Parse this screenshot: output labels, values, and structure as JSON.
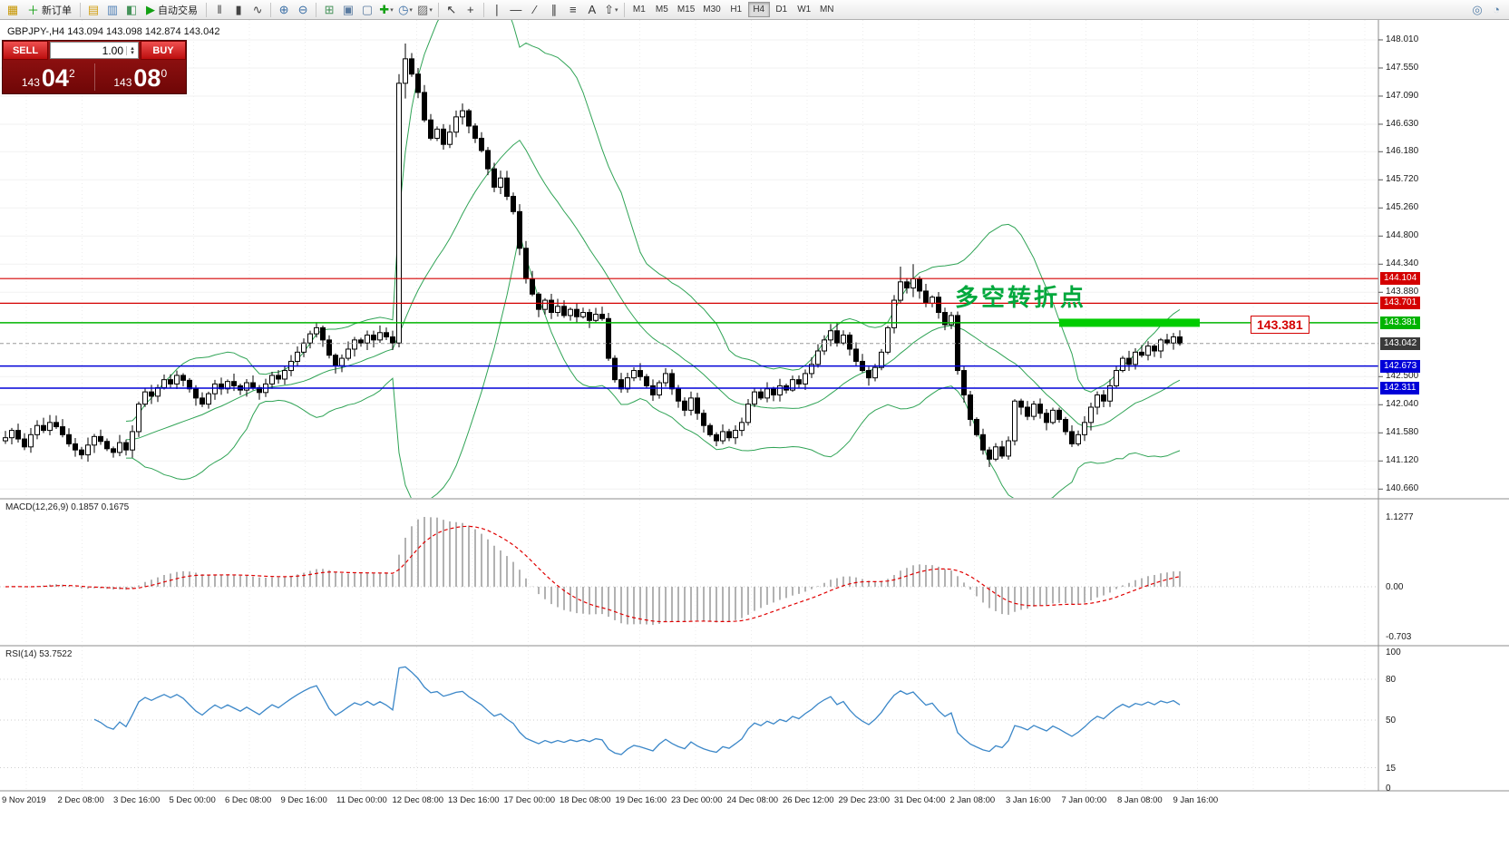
{
  "toolbar": {
    "timeframes": [
      "M1",
      "M5",
      "M15",
      "M30",
      "H1",
      "H4",
      "D1",
      "W1",
      "MN"
    ],
    "active_timeframe": "H4",
    "items": [
      {
        "t": "icon",
        "name": "mt-logo-icon",
        "g": "▦",
        "c": "#c79600"
      },
      {
        "t": "icon",
        "name": "new-order-button",
        "g": "＋",
        "c": "#12a012",
        "label": "新订单"
      },
      {
        "t": "sep"
      },
      {
        "t": "icon",
        "name": "profiles-icon",
        "g": "▤",
        "c": "#d2a017"
      },
      {
        "t": "icon",
        "name": "market-watch-icon",
        "g": "▥",
        "c": "#4f7fb5"
      },
      {
        "t": "icon",
        "name": "navigator-icon",
        "g": "◧",
        "c": "#46935a"
      },
      {
        "t": "icon",
        "name": "auto-trading-button",
        "g": "▶",
        "c": "#12a012",
        "label": "自动交易"
      },
      {
        "t": "sep"
      },
      {
        "t": "icon",
        "name": "bar-chart-icon",
        "g": "‖",
        "c": "#444444"
      },
      {
        "t": "icon",
        "name": "candlestick-chart-icon",
        "g": "▮",
        "c": "#444444"
      },
      {
        "t": "icon",
        "name": "line-chart-icon",
        "g": "∿",
        "c": "#444444"
      },
      {
        "t": "sep"
      },
      {
        "t": "icon",
        "name": "zoom-in-icon",
        "g": "⊕",
        "c": "#3a6ea5"
      },
      {
        "t": "icon",
        "name": "zoom-out-icon",
        "g": "⊖",
        "c": "#3a6ea5"
      },
      {
        "t": "sep"
      },
      {
        "t": "icon",
        "name": "tile-windows-icon",
        "g": "⊞",
        "c": "#46935a"
      },
      {
        "t": "icon",
        "name": "cascade-windows-icon",
        "g": "▣",
        "c": "#5a7ba0"
      },
      {
        "t": "icon",
        "name": "arrange-windows-icon",
        "g": "▢",
        "c": "#5a7ba0"
      },
      {
        "t": "icon",
        "name": "new-chart-icon",
        "g": "✚",
        "c": "#12a012",
        "caret": true
      },
      {
        "t": "icon",
        "name": "period-icon",
        "g": "◷",
        "c": "#3a6ea5",
        "caret": true
      },
      {
        "t": "icon",
        "name": "template-icon",
        "g": "▨",
        "c": "#6b6b6b",
        "caret": true
      },
      {
        "t": "sep"
      },
      {
        "t": "icon",
        "name": "cursor-icon",
        "g": "↖",
        "c": "#333333"
      },
      {
        "t": "icon",
        "name": "crosshair-icon",
        "g": "+",
        "c": "#333333"
      },
      {
        "t": "sep"
      },
      {
        "t": "icon",
        "name": "vertical-line-icon",
        "g": "∣",
        "c": "#333333"
      },
      {
        "t": "icon",
        "name": "horizontal-line-icon",
        "g": "—",
        "c": "#333333"
      },
      {
        "t": "icon",
        "name": "trendline-icon",
        "g": "∕",
        "c": "#333333"
      },
      {
        "t": "icon",
        "name": "channel-icon",
        "g": "∥",
        "c": "#333333"
      },
      {
        "t": "icon",
        "name": "fibonacci-icon",
        "g": "≡",
        "c": "#333333"
      },
      {
        "t": "icon",
        "name": "text-icon",
        "g": "A",
        "c": "#333333"
      },
      {
        "t": "icon",
        "name": "arrows-icon",
        "g": "⇧",
        "c": "#333333",
        "caret": true
      },
      {
        "t": "sep"
      },
      {
        "t": "tfs"
      },
      {
        "t": "spacer"
      },
      {
        "t": "icon",
        "name": "search-icon",
        "g": "◎",
        "c": "#5a82aa"
      },
      {
        "t": "icon",
        "name": "help-icon",
        "g": "◔",
        "c": "#5a82aa"
      }
    ]
  },
  "chart": {
    "symbol_line": "GBPJPY-,H4  143.094 143.098 142.874 143.042",
    "annotation": "多空转折点",
    "callout_label": "143.381"
  },
  "trade_panel": {
    "sell_label": "SELL",
    "buy_label": "BUY",
    "volume": "1.00",
    "sell_price_prefix": "143",
    "sell_price_big": "04",
    "sell_price_sup": "2",
    "buy_price_prefix": "143",
    "buy_price_big": "08",
    "buy_price_sup": "0"
  },
  "panels": {
    "macd": {
      "label": "MACD(12,26,9) 0.1857 0.1675",
      "ticks": [
        "1.1277",
        "0.00",
        "-0.703"
      ]
    },
    "rsi": {
      "label": "RSI(14) 53.7522",
      "ticks": [
        "100",
        "80",
        "50",
        "15",
        "0"
      ]
    }
  },
  "axis": {
    "y_ticks": [
      "148.010",
      "147.550",
      "147.090",
      "146.630",
      "146.180",
      "145.720",
      "145.260",
      "144.800",
      "144.340",
      "143.880",
      "142.500",
      "142.040",
      "141.580",
      "141.120",
      "140.660"
    ],
    "badges": [
      {
        "text": "144.104",
        "color": "#d40000"
      },
      {
        "text": "143.701",
        "color": "#d40000"
      },
      {
        "text": "143.381",
        "color": "#00b400"
      },
      {
        "text": "143.042",
        "color": "#3a3a3a"
      },
      {
        "text": "142.673",
        "color": "#0000d8"
      },
      {
        "text": "142.311",
        "color": "#0000d8"
      }
    ],
    "x_labels": [
      "9 Nov 2019",
      "2 Dec 08:00",
      "3 Dec 16:00",
      "5 Dec 00:00",
      "6 Dec 08:00",
      "9 Dec 16:00",
      "11 Dec 00:00",
      "12 Dec 08:00",
      "13 Dec 16:00",
      "17 Dec 00:00",
      "18 Dec 08:00",
      "19 Dec 16:00",
      "23 Dec 00:00",
      "24 Dec 08:00",
      "26 Dec 12:00",
      "29 Dec 23:00",
      "31 Dec 04:00",
      "2 Jan 08:00",
      "3 Jan 16:00",
      "7 Jan 00:00",
      "8 Jan 08:00",
      "9 Jan 16:00"
    ]
  },
  "colors": {
    "bull": "#ffffff",
    "bear": "#000000",
    "bollinger": "#2fa355",
    "macd_signal": "#e00000",
    "macd_histogram": "#b2b2b2",
    "rsi_line": "#3b87c8",
    "highlight_green": "#00cc00",
    "level_red": "#d40000",
    "level_green": "#00b400",
    "level_blue": "#0000d8",
    "panel_red": "#9c1414"
  },
  "chart_data": {
    "type": "candlestick",
    "symbol": "GBPJPY-",
    "timeframe": "H4",
    "visible_price_range": [
      140.66,
      148.01
    ],
    "current_price": 143.042,
    "closes": [
      141.5,
      141.62,
      141.48,
      141.35,
      141.55,
      141.7,
      141.62,
      141.75,
      141.68,
      141.55,
      141.4,
      141.3,
      141.22,
      141.38,
      141.52,
      141.44,
      141.32,
      141.26,
      141.42,
      141.3,
      141.6,
      142.05,
      142.25,
      142.18,
      142.32,
      142.45,
      142.38,
      142.52,
      142.44,
      142.3,
      142.15,
      142.05,
      142.22,
      142.38,
      142.3,
      142.42,
      142.35,
      142.28,
      142.4,
      142.32,
      142.24,
      142.38,
      142.52,
      142.46,
      142.6,
      142.75,
      142.9,
      143.05,
      143.2,
      143.3,
      143.1,
      142.85,
      142.68,
      142.8,
      142.95,
      143.1,
      143.05,
      143.18,
      143.1,
      143.22,
      143.15,
      143.05,
      147.3,
      147.7,
      147.45,
      147.15,
      146.7,
      146.4,
      146.55,
      146.3,
      146.5,
      146.75,
      146.85,
      146.6,
      146.4,
      146.2,
      145.9,
      145.6,
      145.75,
      145.45,
      145.2,
      144.6,
      144.1,
      143.85,
      143.6,
      143.75,
      143.55,
      143.65,
      143.5,
      143.6,
      143.48,
      143.55,
      143.42,
      143.52,
      143.45,
      142.8,
      142.45,
      142.3,
      142.48,
      142.6,
      142.5,
      142.35,
      142.2,
      142.4,
      142.55,
      142.3,
      142.1,
      141.95,
      142.15,
      141.9,
      141.7,
      141.55,
      141.45,
      141.6,
      141.5,
      141.62,
      141.75,
      142.05,
      142.25,
      142.15,
      142.3,
      142.2,
      142.35,
      142.28,
      142.45,
      142.38,
      142.55,
      142.7,
      142.92,
      143.1,
      143.25,
      143.05,
      143.18,
      142.95,
      142.75,
      142.6,
      142.48,
      142.65,
      142.9,
      143.3,
      143.75,
      144.05,
      143.95,
      144.1,
      143.9,
      143.7,
      143.8,
      143.55,
      143.35,
      143.5,
      142.6,
      142.2,
      141.8,
      141.55,
      141.3,
      141.15,
      141.35,
      141.2,
      141.45,
      142.1,
      142.0,
      141.85,
      142.05,
      141.9,
      141.75,
      141.95,
      141.8,
      141.6,
      141.4,
      141.55,
      141.75,
      142.0,
      142.2,
      142.1,
      142.35,
      142.6,
      142.8,
      142.7,
      142.9,
      142.85,
      143.0,
      142.92,
      143.1,
      143.05,
      143.15,
      143.04
    ],
    "wick_overrides": {
      "62": [
        147.45,
        142.98
      ],
      "63": [
        147.95,
        147.05
      ],
      "141": [
        144.3,
        143.7
      ],
      "143": [
        144.34,
        143.8
      ],
      "155": [
        141.35,
        141.02
      ]
    },
    "levels": [
      {
        "price": 144.104,
        "color": "#d40000",
        "width": 1.2
      },
      {
        "price": 143.701,
        "color": "#d40000",
        "width": 1.2
      },
      {
        "price": 143.381,
        "color": "#00b400",
        "width": 1.5
      },
      {
        "price": 142.673,
        "color": "#0000d8",
        "width": 1.5
      },
      {
        "price": 142.311,
        "color": "#0000d8",
        "width": 1.5
      }
    ],
    "highlight": {
      "price": 143.381,
      "x_start": 1168,
      "x_end": 1323
    },
    "indicators": {
      "bollinger": {
        "period": 20,
        "deviation": 2
      },
      "macd": {
        "fast": 12,
        "slow": 26,
        "signal": 9,
        "values": [
          0.1857,
          0.1675
        ]
      },
      "rsi": {
        "period": 14,
        "value": 53.7522
      }
    }
  }
}
